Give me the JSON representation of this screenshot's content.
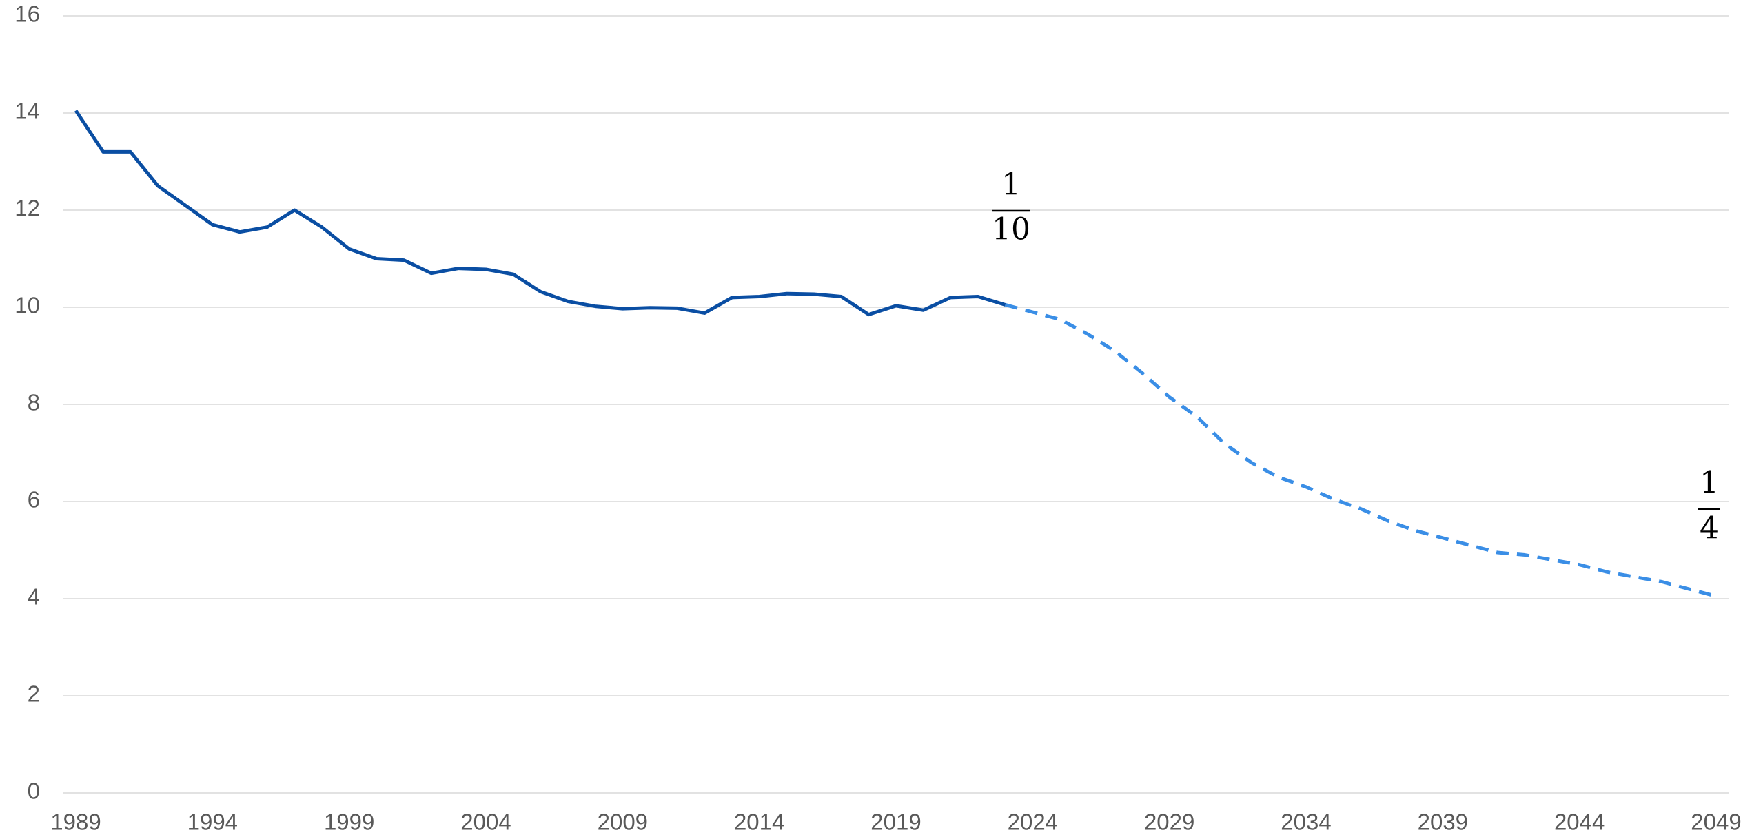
{
  "chart_data": {
    "type": "line",
    "x": [
      1989,
      1990,
      1991,
      1992,
      1993,
      1994,
      1995,
      1996,
      1997,
      1998,
      1999,
      2000,
      2001,
      2002,
      2003,
      2004,
      2005,
      2006,
      2007,
      2008,
      2009,
      2010,
      2011,
      2012,
      2013,
      2014,
      2015,
      2016,
      2017,
      2018,
      2019,
      2020,
      2021,
      2022,
      2023,
      2024,
      2025,
      2026,
      2027,
      2028,
      2029,
      2030,
      2031,
      2032,
      2033,
      2034,
      2035,
      2036,
      2037,
      2038,
      2039,
      2040,
      2041,
      2042,
      2043,
      2044,
      2045,
      2046,
      2047,
      2048,
      2049
    ],
    "series": [
      {
        "color": "#0a4ea3",
        "dashed": false,
        "values": [
          14.05,
          13.2,
          13.2,
          12.5,
          12.1,
          11.7,
          11.55,
          11.65,
          12.0,
          11.65,
          11.2,
          11.0,
          10.97,
          10.7,
          10.8,
          10.78,
          10.68,
          10.32,
          10.12,
          10.02,
          9.97,
          9.99,
          9.98,
          9.88,
          10.2,
          10.22,
          10.28,
          10.27,
          10.22,
          9.85,
          10.03,
          9.94,
          10.2,
          10.22,
          10.05,
          null,
          null,
          null,
          null,
          null,
          null,
          null,
          null,
          null,
          null,
          null,
          null,
          null,
          null,
          null,
          null,
          null,
          null,
          null,
          null,
          null,
          null,
          null,
          null,
          null,
          null
        ]
      },
      {
        "color": "#3a8ee6",
        "dashed": true,
        "values": [
          null,
          null,
          null,
          null,
          null,
          null,
          null,
          null,
          null,
          null,
          null,
          null,
          null,
          null,
          null,
          null,
          null,
          null,
          null,
          null,
          null,
          null,
          null,
          null,
          null,
          null,
          null,
          null,
          null,
          null,
          null,
          null,
          null,
          null,
          10.05,
          9.9,
          9.75,
          9.45,
          9.1,
          8.65,
          8.15,
          7.75,
          7.2,
          6.8,
          6.5,
          6.3,
          6.05,
          5.85,
          5.6,
          5.4,
          5.25,
          5.1,
          4.95,
          4.9,
          4.8,
          4.7,
          4.55,
          4.45,
          4.35,
          4.2,
          4.05
        ]
      }
    ],
    "xlim": [
      1989,
      2049
    ],
    "xticks": [
      1989,
      1994,
      1999,
      2004,
      2009,
      2014,
      2019,
      2024,
      2029,
      2034,
      2039,
      2044,
      2049
    ],
    "ylim": [
      0,
      16
    ],
    "yticks": [
      0,
      2,
      4,
      6,
      8,
      10,
      12,
      14,
      16
    ],
    "grid": true,
    "annotations": [
      {
        "numerator": "1",
        "denominator": "10"
      },
      {
        "numerator": "1",
        "denominator": "4"
      }
    ]
  }
}
